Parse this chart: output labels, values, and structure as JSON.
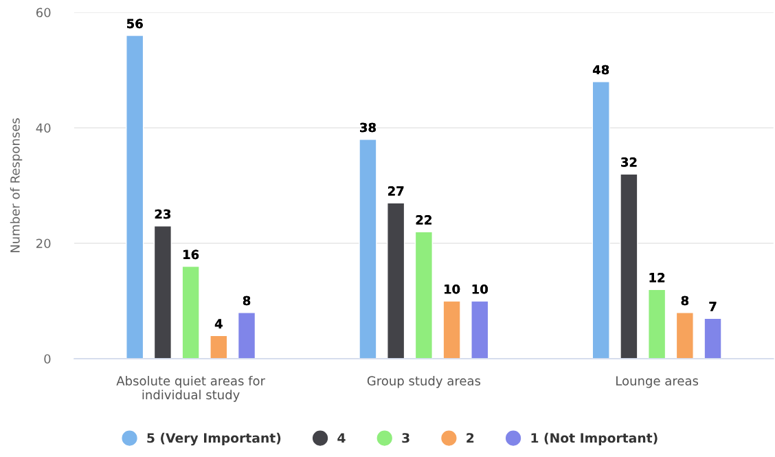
{
  "chart_data": {
    "type": "bar",
    "categories": [
      "Absolute quiet areas for\nindividual study",
      "Group study areas",
      "Lounge areas"
    ],
    "series": [
      {
        "name": "5 (Very Important)",
        "color": "#7cb5ec",
        "values": [
          56,
          38,
          48
        ]
      },
      {
        "name": "4",
        "color": "#434348",
        "values": [
          23,
          27,
          32
        ]
      },
      {
        "name": "3",
        "color": "#90ed7d",
        "values": [
          16,
          22,
          12
        ]
      },
      {
        "name": "2",
        "color": "#f7a35c",
        "values": [
          4,
          10,
          8
        ]
      },
      {
        "name": "1 (Not Important)",
        "color": "#8085e9",
        "values": [
          8,
          10,
          7
        ]
      }
    ],
    "ylabel": "Number of Responses",
    "ylim": [
      0,
      60
    ],
    "yticks": [
      0,
      20,
      40,
      60
    ],
    "grid": "y",
    "legend": "bottom",
    "data_labels": true
  }
}
